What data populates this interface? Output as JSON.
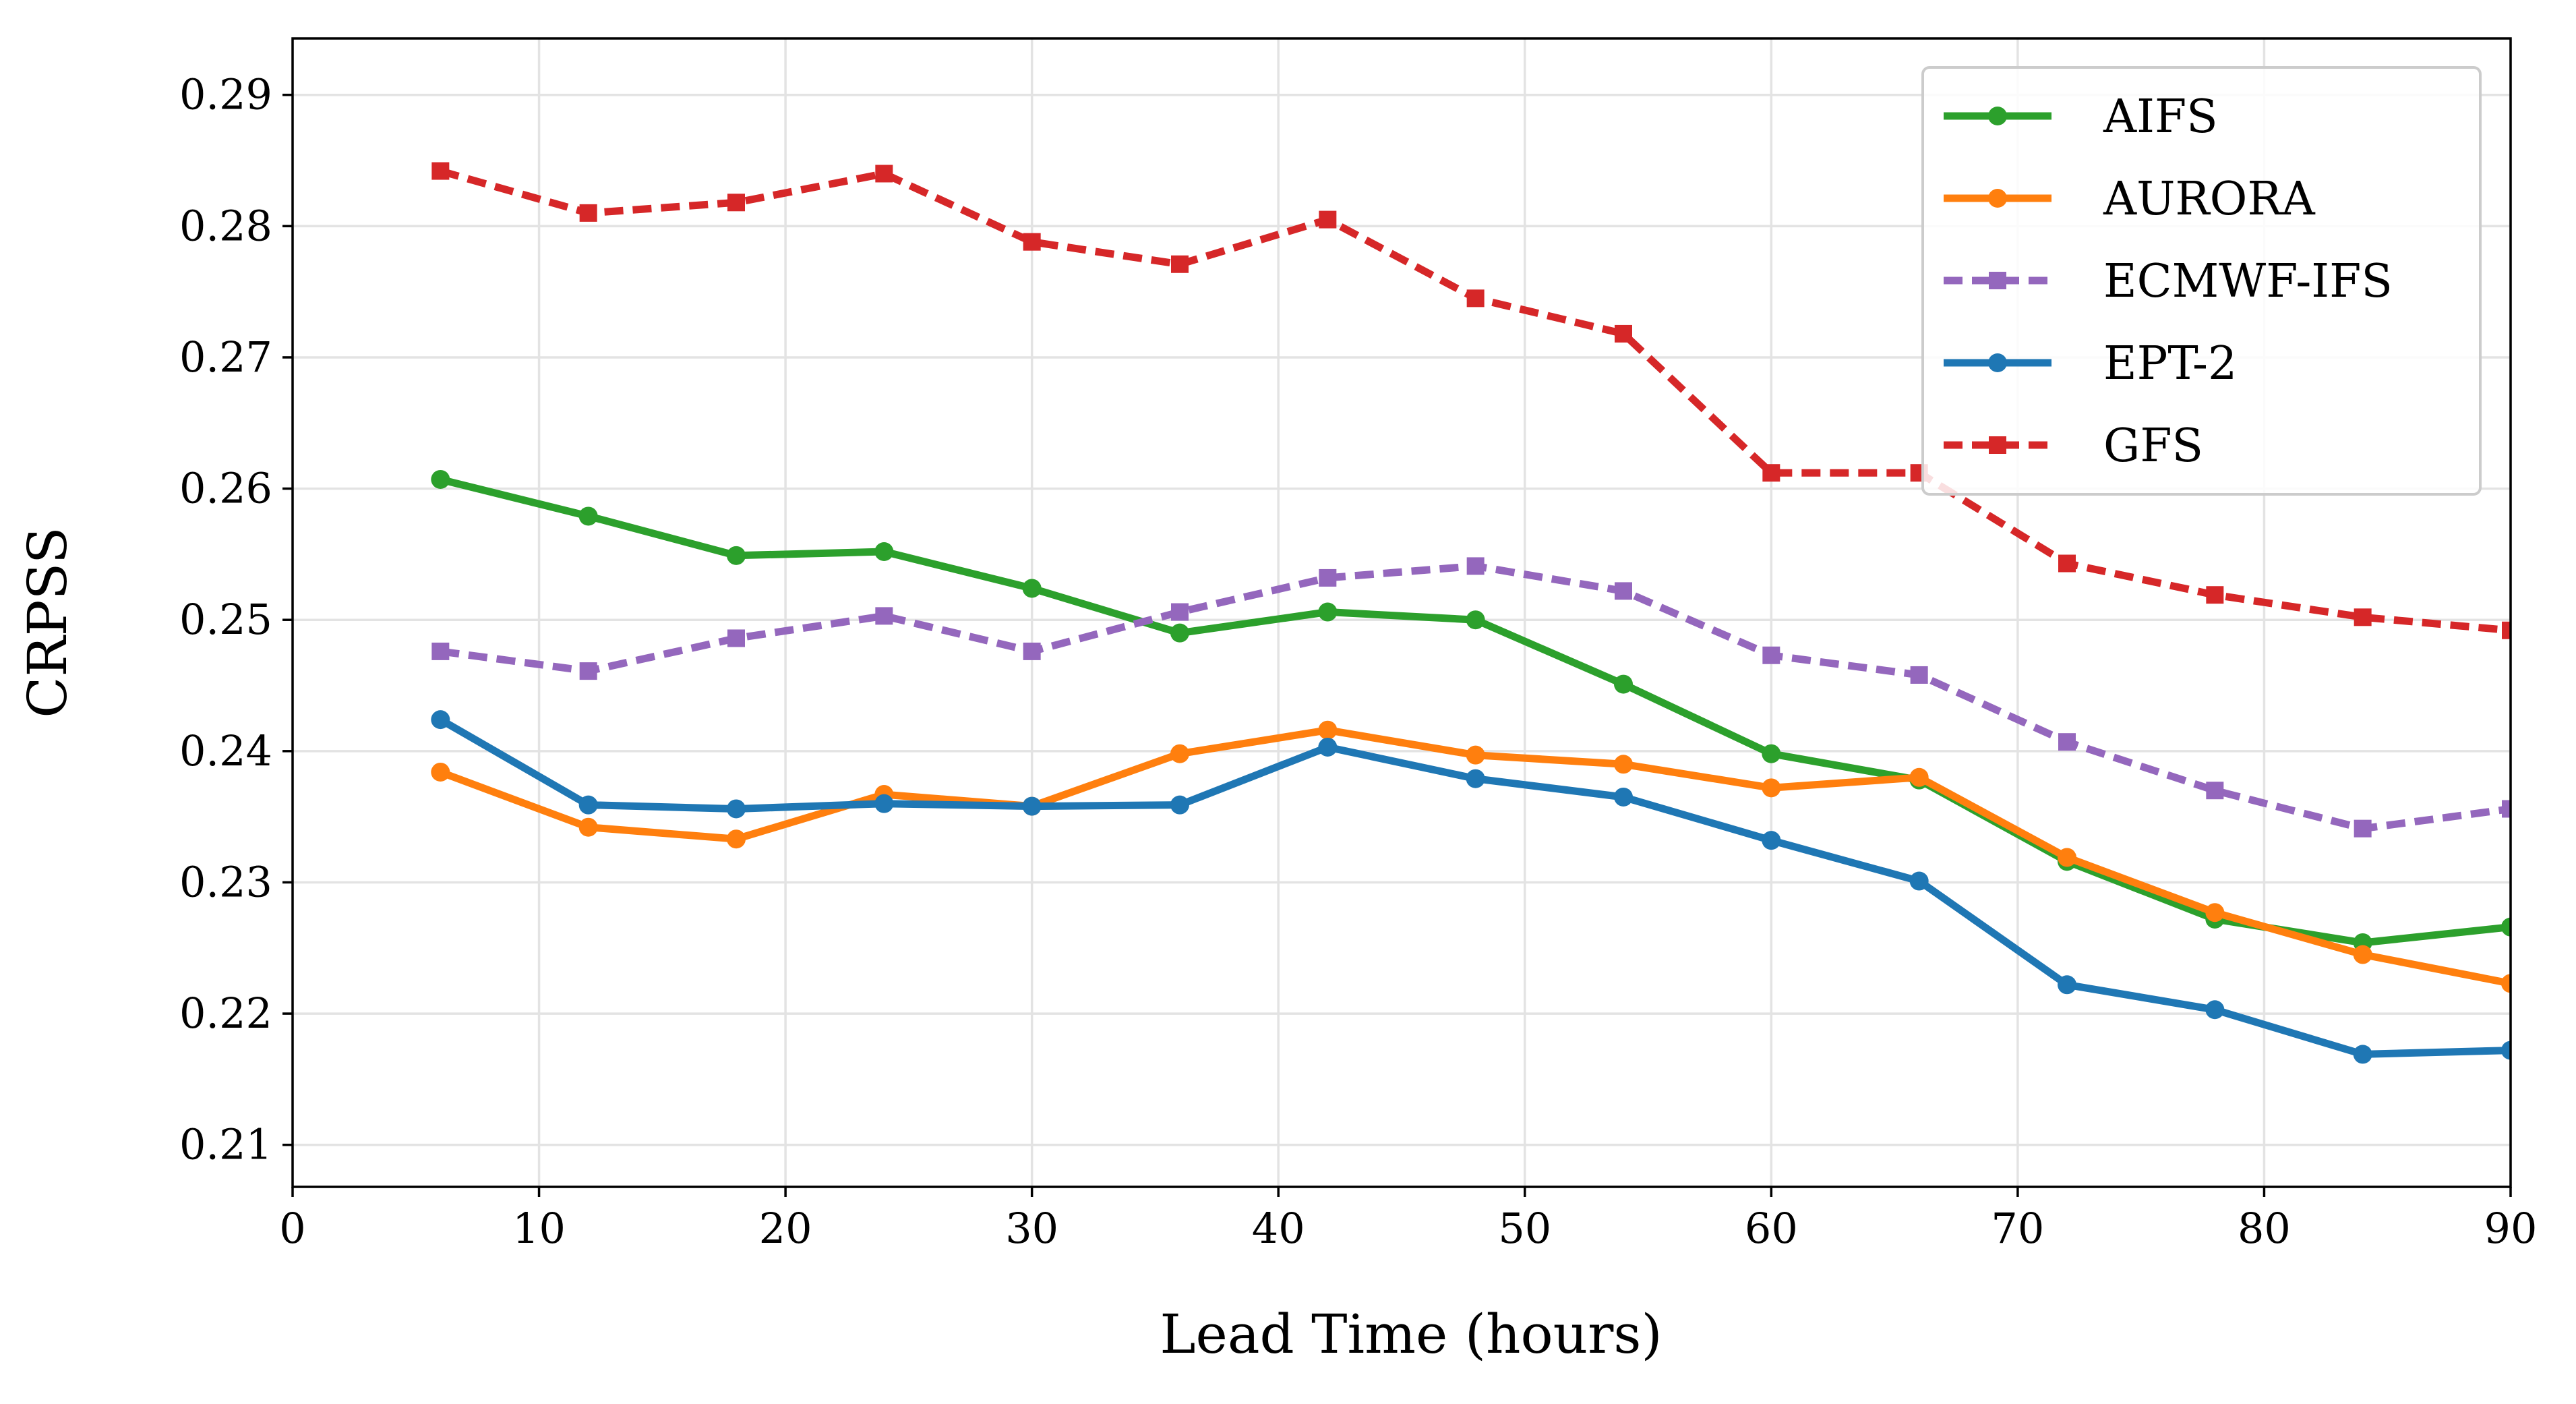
{
  "chart_data": {
    "type": "line",
    "title": "",
    "xlabel": "Lead Time (hours)",
    "ylabel": "CRPSS",
    "xlim": [
      0,
      90
    ],
    "ylim": [
      0.2068,
      0.2943
    ],
    "xticks": [
      0,
      10,
      20,
      30,
      40,
      50,
      60,
      70,
      80,
      90
    ],
    "yticks": [
      0.21,
      0.22,
      0.23,
      0.24,
      0.25,
      0.26,
      0.27,
      0.28,
      0.29
    ],
    "xtick_labels": [
      "0",
      "10",
      "20",
      "30",
      "40",
      "50",
      "60",
      "70",
      "80",
      "90"
    ],
    "ytick_labels": [
      "0.21",
      "0.22",
      "0.23",
      "0.24",
      "0.25",
      "0.26",
      "0.27",
      "0.28",
      "0.29"
    ],
    "grid": true,
    "legend_position": "top-right",
    "x": [
      6,
      12,
      18,
      24,
      30,
      36,
      42,
      48,
      54,
      60,
      66,
      72,
      78,
      84,
      90
    ],
    "series": [
      {
        "name": "AIFS",
        "color": "#2ca02c",
        "linestyle": "solid",
        "marker": "circle",
        "values": [
          0.2607,
          0.2579,
          0.2549,
          0.2552,
          0.2524,
          0.249,
          0.2506,
          0.25,
          0.2451,
          0.2398,
          0.2378,
          0.2316,
          0.2272,
          0.2254,
          0.2266
        ]
      },
      {
        "name": "AURORA",
        "color": "#ff7f0e",
        "linestyle": "solid",
        "marker": "circle",
        "values": [
          0.2384,
          0.2342,
          0.2333,
          0.2367,
          0.2358,
          0.2398,
          0.2416,
          0.2397,
          0.239,
          0.2372,
          0.238,
          0.2319,
          0.2277,
          0.2245,
          0.2223
        ]
      },
      {
        "name": "ECMWF-IFS",
        "color": "#9467bd",
        "linestyle": "dashed",
        "marker": "square",
        "values": [
          0.2476,
          0.2461,
          0.2486,
          0.2503,
          0.2476,
          0.2506,
          0.2532,
          0.2541,
          0.2522,
          0.2473,
          0.2458,
          0.2407,
          0.237,
          0.2341,
          0.2356
        ]
      },
      {
        "name": "EPT-2",
        "color": "#1f77b4",
        "linestyle": "solid",
        "marker": "circle",
        "values": [
          0.2424,
          0.2359,
          0.2356,
          0.236,
          0.2358,
          0.2359,
          0.2403,
          0.2379,
          0.2365,
          0.2332,
          0.2301,
          0.2222,
          0.2203,
          0.2169,
          0.2172
        ]
      },
      {
        "name": "GFS",
        "color": "#d62728",
        "linestyle": "dashed",
        "marker": "square",
        "values": [
          0.2842,
          0.281,
          0.2818,
          0.284,
          0.2788,
          0.2771,
          0.2805,
          0.2745,
          0.2718,
          0.2612,
          0.2612,
          0.2543,
          0.2519,
          0.2502,
          0.2492
        ]
      }
    ]
  }
}
